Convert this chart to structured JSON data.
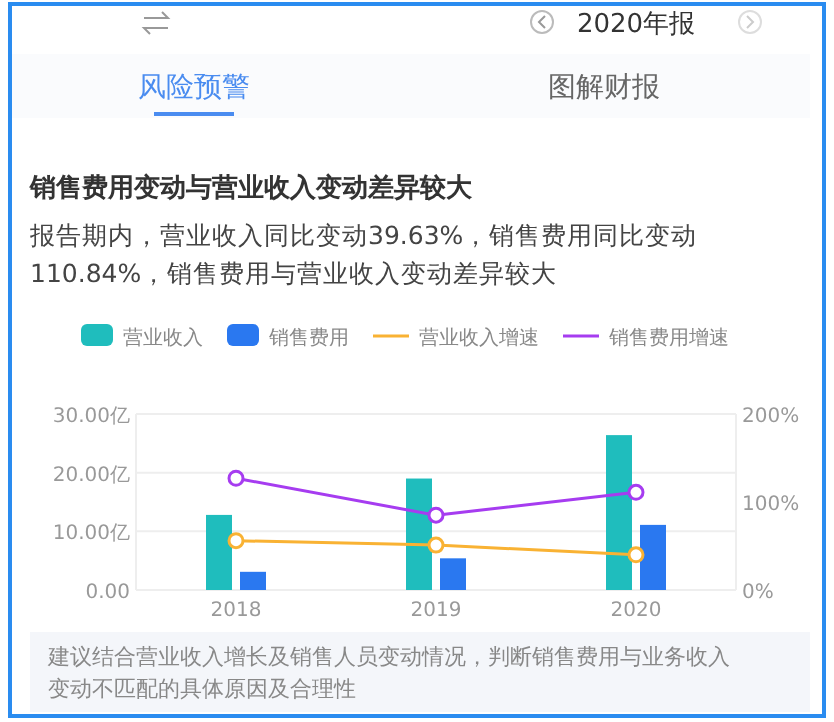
{
  "chart_data": {
    "type": "bar",
    "title": "销售费用变动与营业收入变动差异较大",
    "subtitle": "报告期内，营业收入同比变动39.63%，销售费用同比变动110.84%，销售费用与营业收入变动差异较大",
    "annotations": [
      "2020年报",
      "风险预警",
      "图解财报",
      "建议结合营业收入增长及销售人员变动情况，判断销售费用与业务收入变动不匹配的具体原因及合理性"
    ],
    "categories": [
      "2018",
      "2019",
      "2020"
    ],
    "series": [
      {
        "name": "营业收入",
        "color": "#1fbdbd",
        "values": [
          12.8,
          19.0,
          26.4
        ]
      },
      {
        "name": "销售费用",
        "color": "#2a78f0",
        "values": [
          3.1,
          5.4,
          11.1
        ]
      },
      {
        "name": "营业收入增速",
        "type": "line",
        "axis": "y2",
        "color": "#f9b233",
        "values": [
          56,
          51,
          40
        ]
      },
      {
        "name": "销售费用增速",
        "type": "line",
        "axis": "y2",
        "color": "#a63cf0",
        "values": [
          127,
          85,
          111
        ]
      }
    ],
    "ylim": [
      0,
      30
    ],
    "yticks": [
      {
        "value": 0,
        "label": "0.00"
      },
      {
        "value": 10,
        "label": "10.00亿"
      },
      {
        "value": 20,
        "label": "20.00亿"
      },
      {
        "value": 30,
        "label": "30.00亿"
      }
    ],
    "y2lim": [
      0,
      200
    ],
    "y2ticks": [
      {
        "value": 0,
        "label": "0%"
      },
      {
        "value": 100,
        "label": "100%"
      },
      {
        "value": 200,
        "label": "200%"
      }
    ],
    "grid": "y",
    "legend": "top",
    "marker": "circle",
    "line_style": "solid"
  }
}
